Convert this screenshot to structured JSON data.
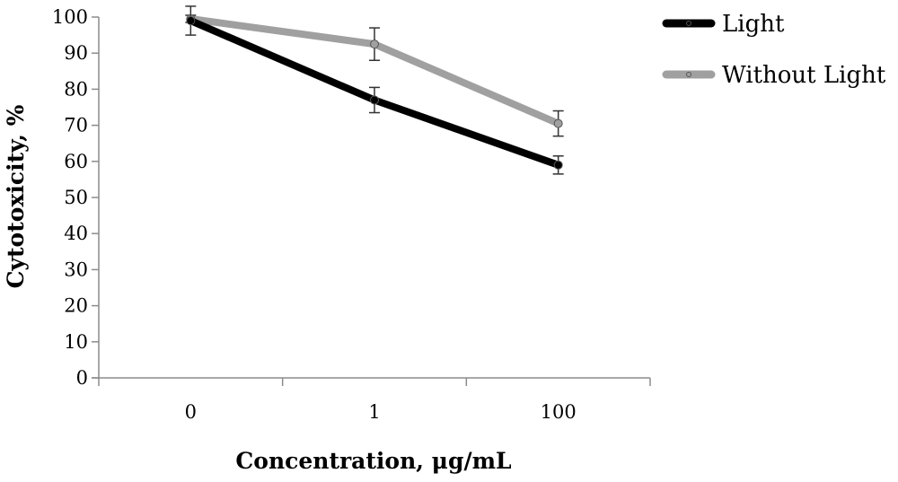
{
  "chart_data": {
    "type": "line",
    "title": "",
    "xlabel": "Concentration, μg/mL",
    "ylabel": "Cytotoxicity, %",
    "categories": [
      "0",
      "1",
      "100"
    ],
    "ylim": [
      0,
      100
    ],
    "yticks": [
      0,
      10,
      20,
      30,
      40,
      50,
      60,
      70,
      80,
      90,
      100
    ],
    "grid": false,
    "legend_position": "top-right",
    "series": [
      {
        "name": "Light",
        "color": "#000000",
        "values": [
          99,
          77,
          59
        ],
        "errors": [
          4,
          3.5,
          2.5
        ]
      },
      {
        "name": "Without Light",
        "color": "#a0a0a0",
        "values": [
          99.5,
          92.5,
          70.5
        ],
        "errors": [
          1,
          4.5,
          3.5
        ]
      }
    ]
  }
}
